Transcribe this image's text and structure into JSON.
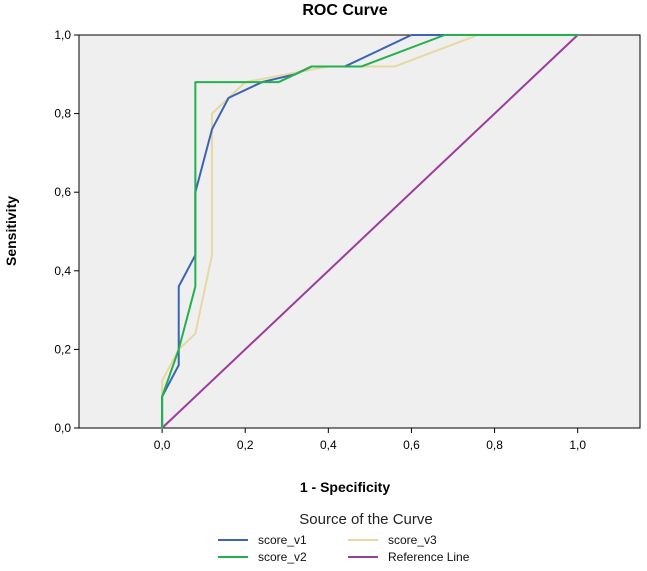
{
  "chart_data": {
    "type": "line",
    "title": "ROC Curve",
    "xlabel": "1 - Specificity",
    "ylabel": "Sensitivity",
    "xlim": [
      -0.2,
      1.15
    ],
    "ylim": [
      0,
      1
    ],
    "x_ticks": [
      {
        "value": 0.0,
        "label": "0,0"
      },
      {
        "value": 0.2,
        "label": "0,2"
      },
      {
        "value": 0.4,
        "label": "0,4"
      },
      {
        "value": 0.6,
        "label": "0,6"
      },
      {
        "value": 0.8,
        "label": "0,8"
      },
      {
        "value": 1.0,
        "label": "1,0"
      }
    ],
    "y_ticks": [
      {
        "value": 0.0,
        "label": "0,0"
      },
      {
        "value": 0.2,
        "label": "0,2"
      },
      {
        "value": 0.4,
        "label": "0,4"
      },
      {
        "value": 0.6,
        "label": "0,6"
      },
      {
        "value": 0.8,
        "label": "0,8"
      },
      {
        "value": 1.0,
        "label": "1,0"
      }
    ],
    "grid": false,
    "legend": {
      "title": "Source of the Curve",
      "position": "bottom"
    },
    "series": [
      {
        "name": "score_v1",
        "color": "#3b64b5",
        "points": [
          [
            0.0,
            0.0
          ],
          [
            0.0,
            0.08
          ],
          [
            0.04,
            0.16
          ],
          [
            0.04,
            0.36
          ],
          [
            0.08,
            0.44
          ],
          [
            0.08,
            0.6
          ],
          [
            0.12,
            0.76
          ],
          [
            0.16,
            0.84
          ],
          [
            0.24,
            0.88
          ],
          [
            0.32,
            0.9
          ],
          [
            0.36,
            0.92
          ],
          [
            0.44,
            0.92
          ],
          [
            0.52,
            0.96
          ],
          [
            0.6,
            1.0
          ],
          [
            1.0,
            1.0
          ]
        ]
      },
      {
        "name": "score_v2",
        "color": "#22b14c",
        "points": [
          [
            0.0,
            0.0
          ],
          [
            0.0,
            0.08
          ],
          [
            0.04,
            0.2
          ],
          [
            0.08,
            0.36
          ],
          [
            0.08,
            0.88
          ],
          [
            0.28,
            0.88
          ],
          [
            0.36,
            0.92
          ],
          [
            0.48,
            0.92
          ],
          [
            0.68,
            1.0
          ],
          [
            1.0,
            1.0
          ]
        ]
      },
      {
        "name": "score_v3",
        "color": "#e6d8a0",
        "points": [
          [
            0.0,
            0.0
          ],
          [
            0.0,
            0.12
          ],
          [
            0.04,
            0.2
          ],
          [
            0.08,
            0.24
          ],
          [
            0.12,
            0.44
          ],
          [
            0.12,
            0.8
          ],
          [
            0.2,
            0.88
          ],
          [
            0.4,
            0.92
          ],
          [
            0.56,
            0.92
          ],
          [
            0.76,
            1.0
          ],
          [
            1.0,
            1.0
          ]
        ]
      },
      {
        "name": "Reference Line",
        "color": "#9b3d9b",
        "points": [
          [
            0.0,
            0.0
          ],
          [
            1.0,
            1.0
          ]
        ]
      }
    ]
  }
}
